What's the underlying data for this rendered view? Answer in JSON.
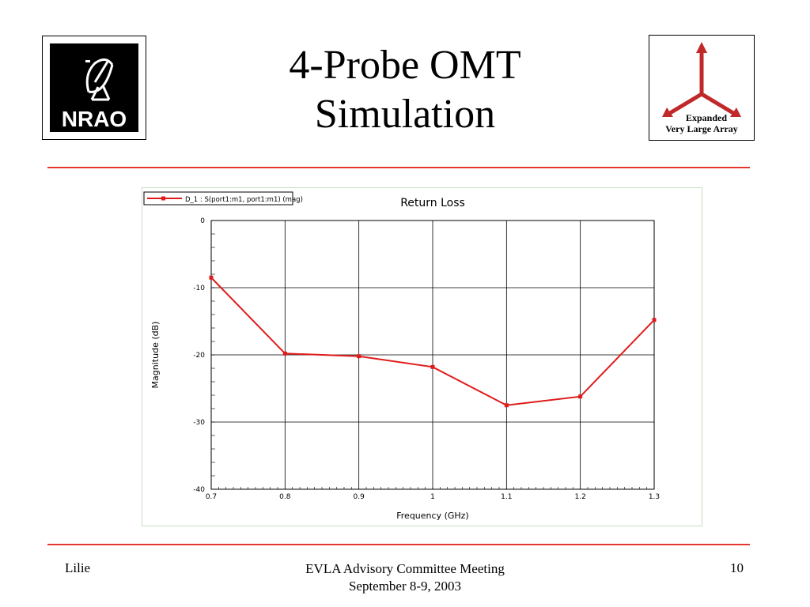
{
  "slide": {
    "title_line1": "4-Probe OMT",
    "title_line2": "Simulation",
    "logo_left_text": "NRAO",
    "logo_right_line1": "Expanded",
    "logo_right_line2": "Very Large Array",
    "footer_left": "Lilie",
    "footer_center_line1": "EVLA Advisory Committee Meeting",
    "footer_center_line2": "September 8-9, 2003",
    "footer_right": "10",
    "rule_color": "#e5372f"
  },
  "chart_data": {
    "type": "line",
    "title": "Return Loss",
    "xlabel": "Frequency (GHz)",
    "ylabel": "Magnitude (dB)",
    "xlim": [
      0.7,
      1.3
    ],
    "ylim": [
      -40,
      0
    ],
    "x_ticks": [
      "0.7",
      "0.8",
      "0.9",
      "1",
      "1.1",
      "1.2",
      "1.3"
    ],
    "y_ticks": [
      "0",
      "-10",
      "-20",
      "-30",
      "-40"
    ],
    "grid": true,
    "legend_position": "top-left",
    "series": [
      {
        "name": "D_1 : S(port1:m1, port1:m1) (mag)",
        "color": "#e01b1b",
        "x": [
          0.7,
          0.8,
          0.9,
          1.0,
          1.1,
          1.2,
          1.3
        ],
        "y": [
          -8.5,
          -19.8,
          -20.2,
          -21.8,
          -27.5,
          -26.2,
          -14.8
        ]
      }
    ]
  }
}
